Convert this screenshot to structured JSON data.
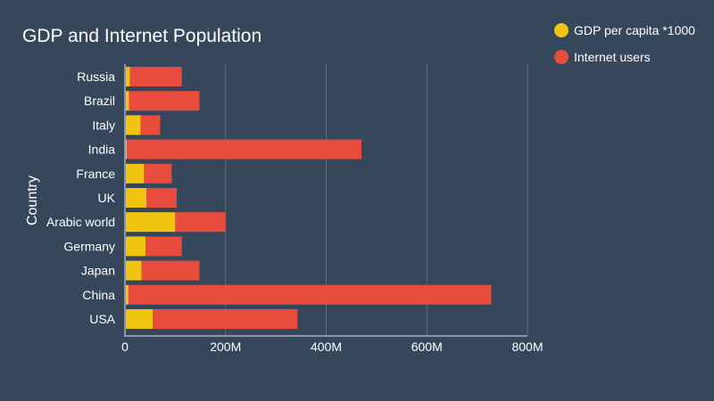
{
  "chart_data": {
    "type": "bar",
    "orientation": "horizontal",
    "stacked": true,
    "title": "GDP and Internet Population",
    "xlabel": "",
    "ylabel": "Country",
    "xlim": [
      0,
      800000000
    ],
    "x_ticks": [
      {
        "value": 0,
        "label": "0"
      },
      {
        "value": 200000000,
        "label": "200M"
      },
      {
        "value": 400000000,
        "label": "400M"
      },
      {
        "value": 600000000,
        "label": "600M"
      },
      {
        "value": 800000000,
        "label": "800M"
      }
    ],
    "grid": true,
    "legend_position": "top-right",
    "categories": [
      "Russia",
      "Brazil",
      "Italy",
      "India",
      "France",
      "UK",
      "Arabic world",
      "Germany",
      "Japan",
      "China",
      "USA"
    ],
    "series": [
      {
        "name": "GDP per capita *1000",
        "color": "#f1c40f",
        "values": [
          10000000,
          8000000,
          31000000,
          4000000,
          38000000,
          43000000,
          100000000,
          41000000,
          33000000,
          7000000,
          55000000
        ]
      },
      {
        "name": "Internet users",
        "color": "#e74c3c",
        "values": [
          103000000,
          140000000,
          39000000,
          466000000,
          55000000,
          60000000,
          100000000,
          72000000,
          115000000,
          721000000,
          288000000
        ]
      }
    ]
  }
}
